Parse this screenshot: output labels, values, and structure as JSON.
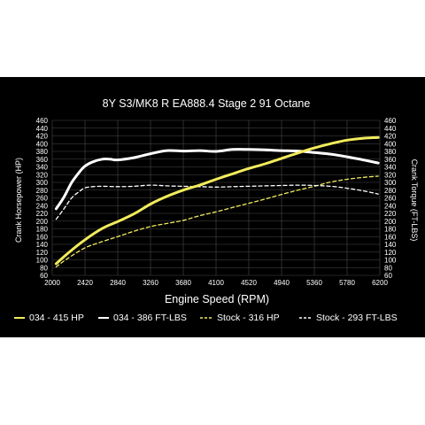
{
  "chart_data": {
    "type": "line",
    "title": "8Y S3/MK8 R EA888.4 Stage 2 91 Octane",
    "xlabel": "Engine Speed (RPM)",
    "ylabel_left": "Crank Horsepower (HP)",
    "ylabel_right": "Crank Torque (FT-LBS)",
    "xlim": [
      2000,
      6200
    ],
    "ylim": [
      60,
      460
    ],
    "x_ticks": [
      "2000",
      "2420",
      "2840",
      "3260",
      "3680",
      "4100",
      "4520",
      "4940",
      "5360",
      "5780",
      "6200"
    ],
    "y_ticks": [
      "60",
      "80",
      "100",
      "120",
      "140",
      "160",
      "180",
      "200",
      "220",
      "240",
      "260",
      "280",
      "300",
      "320",
      "340",
      "360",
      "380",
      "400",
      "420",
      "440",
      "460"
    ],
    "grid": true,
    "legend_position": "bottom",
    "series": [
      {
        "name": "034 - 415 HP",
        "color": "#f2ec5c",
        "style": "solid",
        "x": [
          2050,
          2200,
          2420,
          2640,
          2840,
          3050,
          3260,
          3470,
          3680,
          3890,
          4100,
          4310,
          4520,
          4730,
          4940,
          5150,
          5360,
          5570,
          5780,
          5990,
          6180
        ],
        "y": [
          90,
          117,
          152,
          181,
          199,
          219,
          244,
          264,
          280,
          293,
          308,
          322,
          336,
          348,
          362,
          376,
          389,
          400,
          409,
          414,
          416
        ]
      },
      {
        "name": "034 - 386 FT-LBS",
        "color": "#ffffff",
        "style": "solid",
        "x": [
          2050,
          2150,
          2250,
          2350,
          2420,
          2520,
          2640,
          2740,
          2840,
          3050,
          3260,
          3470,
          3680,
          3890,
          4100,
          4310,
          4520,
          4730,
          4940,
          5150,
          5360,
          5570,
          5780,
          5990,
          6180
        ],
        "y": [
          232,
          262,
          300,
          327,
          342,
          353,
          360,
          360,
          358,
          364,
          374,
          382,
          381,
          382,
          380,
          385,
          385,
          384,
          382,
          381,
          377,
          373,
          366,
          358,
          350
        ]
      },
      {
        "name": "Stock - 316 HP",
        "color": "#f2ec5c",
        "style": "dashed",
        "x": [
          2050,
          2200,
          2420,
          2640,
          2840,
          3050,
          3260,
          3470,
          3680,
          3890,
          4100,
          4310,
          4520,
          4730,
          4940,
          5150,
          5360,
          5570,
          5780,
          5990,
          6180
        ],
        "y": [
          82,
          104,
          131,
          147,
          160,
          174,
          186,
          194,
          202,
          214,
          224,
          235,
          246,
          257,
          269,
          280,
          290,
          301,
          308,
          313,
          316
        ]
      },
      {
        "name": "Stock - 293 FT-LBS",
        "color": "#ffffff",
        "style": "dashed",
        "x": [
          2050,
          2150,
          2250,
          2350,
          2420,
          2520,
          2640,
          2840,
          3050,
          3260,
          3470,
          3680,
          3890,
          4100,
          4310,
          4520,
          4730,
          4940,
          5150,
          5360,
          5570,
          5780,
          5990,
          6180
        ],
        "y": [
          205,
          232,
          260,
          277,
          286,
          289,
          290,
          289,
          290,
          293,
          291,
          290,
          289,
          288,
          289,
          290,
          291,
          292,
          293,
          292,
          290,
          285,
          278,
          270
        ]
      }
    ]
  }
}
